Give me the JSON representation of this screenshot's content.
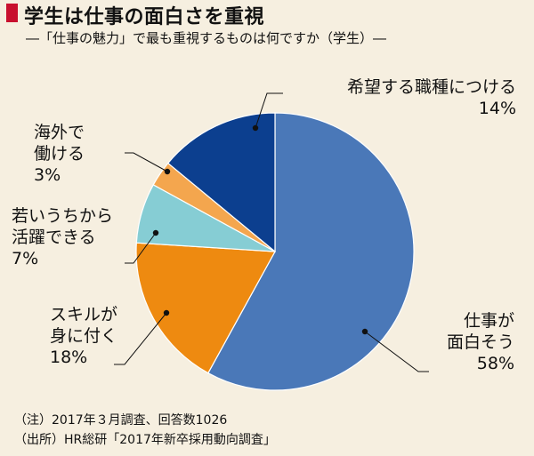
{
  "header": {
    "title": "学生は仕事の面白さを重視",
    "subtitle": "―「仕事の魅力」で最も重視するものは何ですか（学生）―"
  },
  "chart_data": {
    "type": "pie",
    "title": "学生は仕事の面白さを重視",
    "slices": [
      {
        "label_lines": [
          "仕事が",
          "面白そう"
        ],
        "value": 58,
        "value_label": "58%",
        "color": "#4a78b8"
      },
      {
        "label_lines": [
          "スキルが",
          "身に付く"
        ],
        "value": 18,
        "value_label": "18%",
        "color": "#ee8a10"
      },
      {
        "label_lines": [
          "若いうちから",
          "活躍できる"
        ],
        "value": 7,
        "value_label": "7%",
        "color": "#86cdd4"
      },
      {
        "label_lines": [
          "海外で",
          "働ける"
        ],
        "value": 3,
        "value_label": "3%",
        "color": "#f4a64e"
      },
      {
        "label_lines": [
          "希望する職種につける"
        ],
        "value": 14,
        "value_label": "14%",
        "color": "#0c3f8f"
      }
    ],
    "start_angle_deg": 0,
    "direction": "clockwise"
  },
  "notes": {
    "note1": "（注）2017年３月調査、回答数1026",
    "note2": "（出所）HR総研「2017年新卒採用動向調査」"
  }
}
